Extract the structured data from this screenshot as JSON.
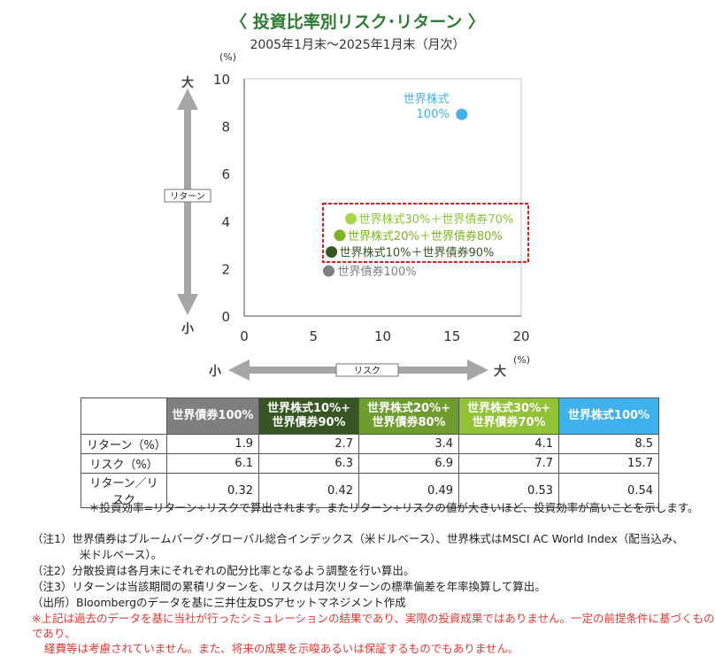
{
  "header": {
    "title": "〈 投資比率別リスク･リターン 〉",
    "subtitle": "2005年1月末～2025年1月末（月次）"
  },
  "axis_labels": {
    "y_unit": "(%)",
    "x_unit": "(%)",
    "y_big": "大",
    "y_small": "小",
    "x_big": "大",
    "x_small": "小",
    "y_name": "リターン",
    "x_name": "リスク"
  },
  "chart_data": {
    "type": "scatter",
    "xlabel": "リスク",
    "ylabel": "リターン",
    "xlim": [
      0,
      20
    ],
    "ylim": [
      0,
      10
    ],
    "xticks": [
      0,
      5,
      10,
      15,
      20
    ],
    "yticks": [
      0,
      2,
      4,
      6,
      8,
      10
    ],
    "grid": false,
    "points": [
      {
        "label": "世界債券100%",
        "x": 6.1,
        "y": 1.9,
        "color": "#7f7f7f"
      },
      {
        "label": "世界株式10%＋世界債券90%",
        "x": 6.3,
        "y": 2.7,
        "color": "#375623"
      },
      {
        "label": "世界株式20%＋世界債券80%",
        "x": 6.9,
        "y": 3.4,
        "color": "#7cb41f"
      },
      {
        "label": "世界株式30%＋世界債券70%",
        "x": 7.7,
        "y": 4.1,
        "color": "#a6d64a"
      },
      {
        "label": "世界株式\n100%",
        "x": 15.7,
        "y": 8.5,
        "color": "#3fb2ee"
      }
    ]
  },
  "table": {
    "columns": [
      {
        "label": "世界債券100%",
        "color": "#7f7f7f"
      },
      {
        "label": "世界株式10%+\n世界債券90%",
        "color": "#375623"
      },
      {
        "label": "世界株式20%+\n世界債券80%",
        "color": "#6e9d2d"
      },
      {
        "label": "世界株式30%+\n世界債券70%",
        "color": "#92c236"
      },
      {
        "label": "世界株式100%",
        "color": "#3fb2ee"
      }
    ],
    "rows": [
      {
        "label": "リターン（%）",
        "values": [
          "1.9",
          "2.7",
          "3.4",
          "4.1",
          "8.5"
        ]
      },
      {
        "label": "リスク（%）",
        "values": [
          "6.1",
          "6.3",
          "6.9",
          "7.7",
          "15.7"
        ]
      },
      {
        "label": "リターン／リスク",
        "values": [
          "0.32",
          "0.42",
          "0.49",
          "0.53",
          "0.54"
        ]
      }
    ]
  },
  "footnote": "＊投資効率=リターン÷リスクで算出されます。またリターン÷リスクの値が大きいほど、投資効率が高いことを示します。",
  "notes": [
    "（注1）世界債券はブルームバーグ･グローバル総合インデックス（米ドルベース）、世界株式はMSCI AC World Index（配当込み、",
    "米ドルベース）。",
    "（注2）分散投資は各月末にそれぞれの配分比率となるよう調整を行い算出。",
    "（注3）リターンは当該期間の累積リターンを、リスクは月次リターンの標準偏差を年率換算して算出。",
    "（出所）Bloombergのデータを基に三井住友DSアセットマネジメント作成"
  ],
  "disclaimer": [
    "※上記は過去のデータを基に当社が行ったシミュレーションの結果であり、実際の投資成果ではありません。一定の前提条件に基づくものであり、",
    "経費等は考慮されていません。また、将来の成果を示唆あるいは保証するものでもありません。"
  ]
}
